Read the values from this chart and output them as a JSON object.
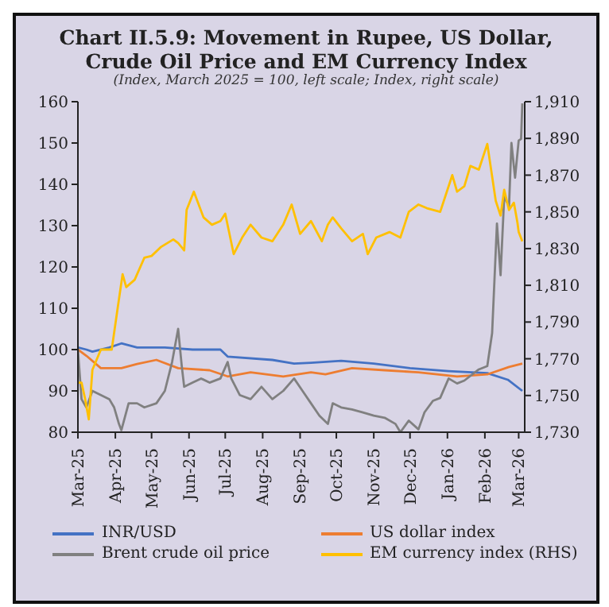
{
  "chart_data": {
    "type": "line",
    "title": "Chart II.5.9: Movement in Rupee, US Dollar, Crude Oil Price and EM Currency Index",
    "subtitle": "(Index, March 2025 = 100, left scale; Index, right scale)",
    "xlim": [
      "2025-03-01",
      "2026-03-06"
    ],
    "xticks": [
      {
        "value": "2025-03-01",
        "label": "Mar-25"
      },
      {
        "value": "2025-04-01",
        "label": "Apr-25"
      },
      {
        "value": "2025-05-01",
        "label": "May-25"
      },
      {
        "value": "2025-06-01",
        "label": "Jun-25"
      },
      {
        "value": "2025-07-01",
        "label": "Jul-25"
      },
      {
        "value": "2025-08-01",
        "label": "Aug-25"
      },
      {
        "value": "2025-09-01",
        "label": "Sep-25"
      },
      {
        "value": "2025-10-01",
        "label": "Oct-25"
      },
      {
        "value": "2025-11-01",
        "label": "Nov-25"
      },
      {
        "value": "2025-12-01",
        "label": "Dec-25"
      },
      {
        "value": "2026-01-01",
        "label": "Jan-26"
      },
      {
        "value": "2026-02-01",
        "label": "Feb-26"
      },
      {
        "value": "2026-03-01",
        "label": "Mar-26"
      }
    ],
    "ylim": [
      80,
      160
    ],
    "yticks": [
      80,
      90,
      100,
      110,
      120,
      130,
      140,
      150,
      160
    ],
    "y2lim": [
      1730,
      1910
    ],
    "y2ticks": [
      {
        "value": 1730,
        "label": "1,730"
      },
      {
        "value": 1750,
        "label": "1,750"
      },
      {
        "value": 1770,
        "label": "1,770"
      },
      {
        "value": 1790,
        "label": "1,790"
      },
      {
        "value": 1810,
        "label": "1,810"
      },
      {
        "value": 1830,
        "label": "1,830"
      },
      {
        "value": 1850,
        "label": "1,850"
      },
      {
        "value": 1870,
        "label": "1,870"
      },
      {
        "value": 1890,
        "label": "1,890"
      },
      {
        "value": 1910,
        "label": "1,910"
      }
    ],
    "legend": "bottom",
    "marker": "none",
    "line_style": "solid",
    "series": [
      {
        "name": "INR/USD",
        "color": "#4472c4",
        "x": [
          "2025-03-01",
          "2025-03-08",
          "2025-03-13",
          "2025-03-27",
          "2025-04-06",
          "2025-04-19",
          "2025-05-12",
          "2025-06-04",
          "2025-06-27",
          "2025-07-03",
          "2025-08-09",
          "2025-08-27",
          "2025-09-10",
          "2025-10-05",
          "2025-11-01",
          "2025-12-01",
          "2026-01-02",
          "2026-02-03",
          "2026-02-20",
          "2026-03-04"
        ],
        "values": [
          100.5,
          100,
          99.5,
          100.5,
          101.5,
          100.5,
          100.5,
          100,
          100,
          98.3,
          97.5,
          96.6,
          96.8,
          97.3,
          96.6,
          95.5,
          94.8,
          94.3,
          92.7,
          90
        ]
      },
      {
        "name": "US dollar index",
        "color": "#ed7d31",
        "x": [
          "2025-03-01",
          "2025-03-08",
          "2025-03-20",
          "2025-04-06",
          "2025-04-19",
          "2025-05-05",
          "2025-05-23",
          "2025-06-18",
          "2025-07-03",
          "2025-07-22",
          "2025-08-18",
          "2025-09-10",
          "2025-09-22",
          "2025-10-14",
          "2025-11-10",
          "2025-12-08",
          "2026-01-09",
          "2026-02-03",
          "2026-02-21",
          "2026-03-04"
        ],
        "values": [
          100,
          98.5,
          95.5,
          95.5,
          96.5,
          97.5,
          95.5,
          95,
          93.5,
          94.5,
          93.5,
          94.5,
          94,
          95.5,
          95,
          94.5,
          93.5,
          94,
          95.8,
          96.6
        ]
      },
      {
        "name": "Brent crude oil price",
        "color": "#808080",
        "x": [
          "2025-03-01",
          "2025-03-04",
          "2025-03-08",
          "2025-03-13",
          "2025-03-20",
          "2025-03-27",
          "2025-03-31",
          "2025-04-04",
          "2025-04-06",
          "2025-04-12",
          "2025-04-19",
          "2025-04-25",
          "2025-05-05",
          "2025-05-12",
          "2025-05-18",
          "2025-05-23",
          "2025-05-26",
          "2025-05-28",
          "2025-06-04",
          "2025-06-11",
          "2025-06-18",
          "2025-06-27",
          "2025-07-03",
          "2025-07-06",
          "2025-07-13",
          "2025-07-22",
          "2025-07-31",
          "2025-08-09",
          "2025-08-18",
          "2025-08-27",
          "2025-09-03",
          "2025-09-10",
          "2025-09-17",
          "2025-09-24",
          "2025-09-28",
          "2025-10-05",
          "2025-10-14",
          "2025-10-23",
          "2025-11-01",
          "2025-11-10",
          "2025-11-19",
          "2025-11-23",
          "2025-11-30",
          "2025-12-08",
          "2025-12-13",
          "2025-12-20",
          "2025-12-26",
          "2026-01-02",
          "2026-01-09",
          "2026-01-15",
          "2026-01-27",
          "2026-02-03",
          "2026-02-07",
          "2026-02-11",
          "2026-02-14",
          "2026-02-17",
          "2026-02-21",
          "2026-02-23",
          "2026-02-26",
          "2026-03-01",
          "2026-03-03",
          "2026-03-04"
        ],
        "values": [
          100,
          88,
          86,
          90,
          89,
          88,
          86,
          82,
          80.5,
          87,
          87,
          86,
          87,
          90,
          97,
          105,
          96,
          91,
          92,
          93,
          92,
          93,
          97,
          93,
          89,
          88,
          91,
          88,
          90,
          93,
          90,
          87,
          84,
          82,
          87,
          86,
          85.5,
          84.8,
          84,
          83.5,
          82,
          80,
          82.8,
          80.7,
          84.8,
          87.6,
          88.3,
          93,
          91.8,
          92.5,
          95.2,
          96,
          104,
          130.5,
          118,
          137,
          134.7,
          150,
          141.6,
          150.6,
          151,
          159.6
        ]
      },
      {
        "name": "EM currency index (RHS)",
        "color": "#ffc000",
        "axis": "y2",
        "x": [
          "2025-03-01",
          "2025-03-04",
          "2025-03-07",
          "2025-03-10",
          "2025-03-13",
          "2025-03-20",
          "2025-03-29",
          "2025-04-03",
          "2025-04-07",
          "2025-04-10",
          "2025-04-17",
          "2025-04-25",
          "2025-05-01",
          "2025-05-09",
          "2025-05-19",
          "2025-05-23",
          "2025-05-28",
          "2025-05-30",
          "2025-06-05",
          "2025-06-13",
          "2025-06-20",
          "2025-06-27",
          "2025-07-01",
          "2025-07-08",
          "2025-07-15",
          "2025-07-22",
          "2025-07-31",
          "2025-08-09",
          "2025-08-18",
          "2025-08-25",
          "2025-09-01",
          "2025-09-10",
          "2025-09-19",
          "2025-09-24",
          "2025-09-28",
          "2025-10-05",
          "2025-10-14",
          "2025-10-23",
          "2025-10-27",
          "2025-11-03",
          "2025-11-14",
          "2025-11-23",
          "2025-11-30",
          "2025-12-08",
          "2025-12-15",
          "2025-12-26",
          "2026-01-05",
          "2026-01-09",
          "2026-01-15",
          "2026-01-20",
          "2026-01-27",
          "2026-02-03",
          "2026-02-10",
          "2026-02-14",
          "2026-02-17",
          "2026-02-21",
          "2026-02-25",
          "2026-02-28",
          "2026-03-01",
          "2026-03-04"
        ],
        "values": [
          1757,
          1757,
          1748,
          1737,
          1764,
          1775,
          1775,
          1798,
          1816,
          1809,
          1813,
          1825,
          1826,
          1831,
          1835,
          1833,
          1829,
          1851,
          1861,
          1847,
          1843,
          1845,
          1849,
          1827,
          1836,
          1843,
          1836,
          1834,
          1843,
          1854,
          1838,
          1845,
          1834,
          1843,
          1847,
          1841,
          1834,
          1838,
          1827,
          1836,
          1839,
          1836,
          1850,
          1854,
          1852,
          1850,
          1870,
          1861,
          1864,
          1875,
          1873,
          1887,
          1856,
          1848,
          1862,
          1851,
          1855,
          1844,
          1839,
          1834
        ]
      }
    ]
  }
}
